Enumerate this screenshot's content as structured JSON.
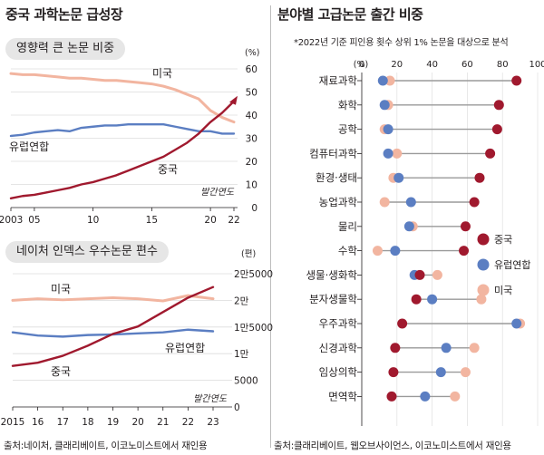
{
  "left_title": "중국 과학논문 급성장",
  "right_title": "분야별 고급논문 출간 비중",
  "right_note": "*2022년 기준 피인용 횟수 상위 1% 논문을 대상으로 분석",
  "left_source": "출처:네이처, 클래리베이트, 이코노미스트에서 재인용",
  "right_source": "출처:클래리베이트, 웹오브사이언스, 이코노미스트에서 재인용",
  "colors": {
    "china": "#a0192e",
    "eu": "#5b7ec2",
    "us": "#f2b5a0",
    "bg_pill": "#e6e6e6"
  },
  "chart_data": [
    {
      "type": "line",
      "title": "영향력 큰 논문 비중",
      "unit": "(%)",
      "xlabel": "발간연도",
      "x": [
        2003,
        2004,
        2005,
        2006,
        2007,
        2008,
        2009,
        2010,
        2011,
        2012,
        2013,
        2014,
        2015,
        2016,
        2017,
        2018,
        2019,
        2020,
        2021,
        2022
      ],
      "x_tick_labels": [
        "2003",
        "05",
        "10",
        "15",
        "20",
        "22"
      ],
      "x_ticks": [
        2003,
        2005,
        2010,
        2015,
        2020,
        2022
      ],
      "ylim": [
        0,
        60
      ],
      "y_ticks": [
        "0",
        "10",
        "20",
        "30",
        "40",
        "50",
        "60"
      ],
      "series": [
        {
          "name": "미국",
          "values": [
            58,
            57.5,
            57.5,
            57,
            56.5,
            56,
            56,
            55.5,
            55,
            55,
            54.5,
            54,
            53.5,
            52.5,
            51,
            49,
            47,
            42,
            39,
            37
          ]
        },
        {
          "name": "유럽연합",
          "values": [
            31,
            31.5,
            32.5,
            33,
            33.5,
            33,
            34.5,
            35,
            35.5,
            35.5,
            36,
            36,
            36,
            36,
            35,
            34,
            33,
            33,
            32,
            32
          ]
        },
        {
          "name": "중국",
          "values": [
            4,
            5,
            5.5,
            6.5,
            7.5,
            8.5,
            10,
            11,
            12.5,
            14,
            16,
            18,
            20,
            22,
            25,
            28,
            32,
            37,
            41,
            46
          ]
        }
      ]
    },
    {
      "type": "line",
      "title": "네이처 인덱스 우수논문 편수",
      "unit": "(편)",
      "xlabel": "발간연도",
      "x": [
        2015,
        2016,
        2017,
        2018,
        2019,
        2020,
        2021,
        2022,
        2023
      ],
      "x_tick_labels": [
        "2015",
        "16",
        "17",
        "18",
        "19",
        "20",
        "21",
        "22",
        "23"
      ],
      "ylim": [
        0,
        25000
      ],
      "y_ticks": [
        "0",
        "5000",
        "1만",
        "1만5000",
        "2만",
        "2만5000"
      ],
      "series": [
        {
          "name": "미국",
          "values": [
            20000,
            20300,
            20100,
            20300,
            20500,
            20300,
            19900,
            20900,
            20300
          ]
        },
        {
          "name": "유럽연합",
          "values": [
            14000,
            13400,
            13200,
            13500,
            13600,
            13800,
            14000,
            14500,
            14200
          ]
        },
        {
          "name": "중국",
          "values": [
            7700,
            8300,
            9600,
            11500,
            13700,
            15100,
            17800,
            20500,
            22500
          ]
        }
      ]
    },
    {
      "type": "scatter",
      "title": "분야별 고급논문 출간 비중",
      "unit": "(%)",
      "xlim": [
        0,
        100
      ],
      "x_ticks": [
        "0",
        "20",
        "40",
        "60",
        "80",
        "100"
      ],
      "legend": [
        "중국",
        "유럽연합",
        "미국"
      ],
      "legend_position": "right",
      "categories": [
        "재료과학",
        "화학",
        "공학",
        "컴퓨터과학",
        "환경·생태",
        "농업과학",
        "물리",
        "수학",
        "생물·생화학",
        "분자생물학",
        "우주과학",
        "신경과학",
        "임상의학",
        "면역학"
      ],
      "series": [
        {
          "name": "중국",
          "values": [
            88,
            78,
            77,
            73,
            67,
            64,
            59,
            58,
            33,
            31,
            23,
            19,
            18,
            17
          ]
        },
        {
          "name": "유럽연합",
          "values": [
            12,
            13,
            15,
            15,
            21,
            28,
            27,
            19,
            30,
            40,
            88,
            48,
            45,
            36
          ]
        },
        {
          "name": "미국",
          "values": [
            16,
            15,
            13,
            20,
            18,
            13,
            29,
            9,
            43,
            68,
            90,
            64,
            59,
            53
          ]
        }
      ]
    }
  ]
}
